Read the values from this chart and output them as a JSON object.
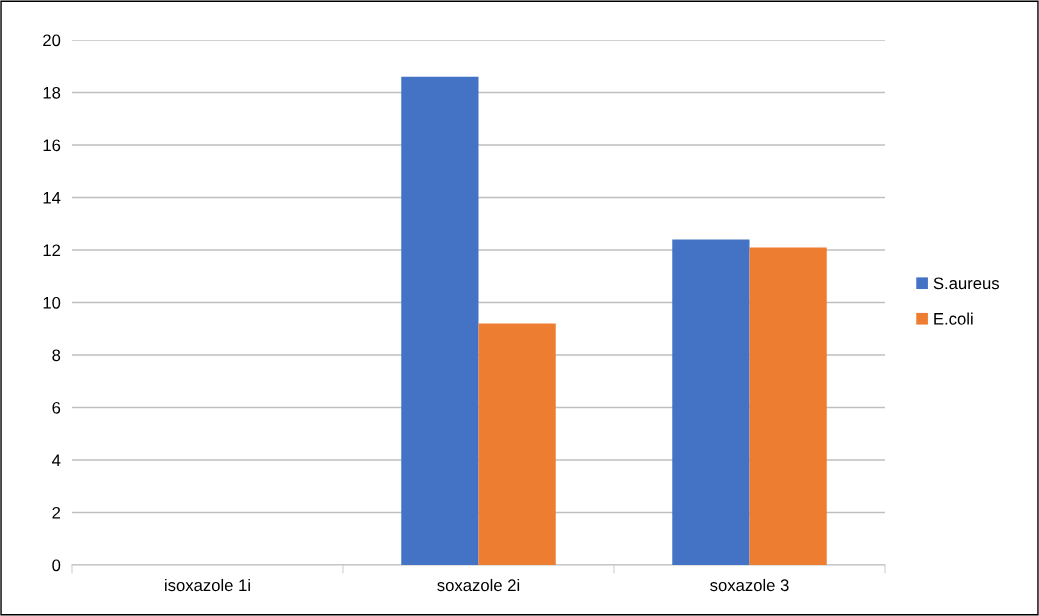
{
  "chart_data": {
    "type": "bar",
    "categories": [
      "isoxazole 1i",
      "soxazole 2i",
      "soxazole 3"
    ],
    "series": [
      {
        "name": "S.aureus",
        "color": "#4472c4",
        "values": [
          null,
          18.6,
          12.4
        ]
      },
      {
        "name": "E.coli",
        "color": "#ed7d31",
        "values": [
          null,
          9.2,
          12.1
        ]
      }
    ],
    "ylim": [
      0,
      20
    ],
    "yticks": [
      0,
      2,
      4,
      6,
      8,
      10,
      12,
      14,
      16,
      18,
      20
    ],
    "grid": "y",
    "legend": "right"
  }
}
